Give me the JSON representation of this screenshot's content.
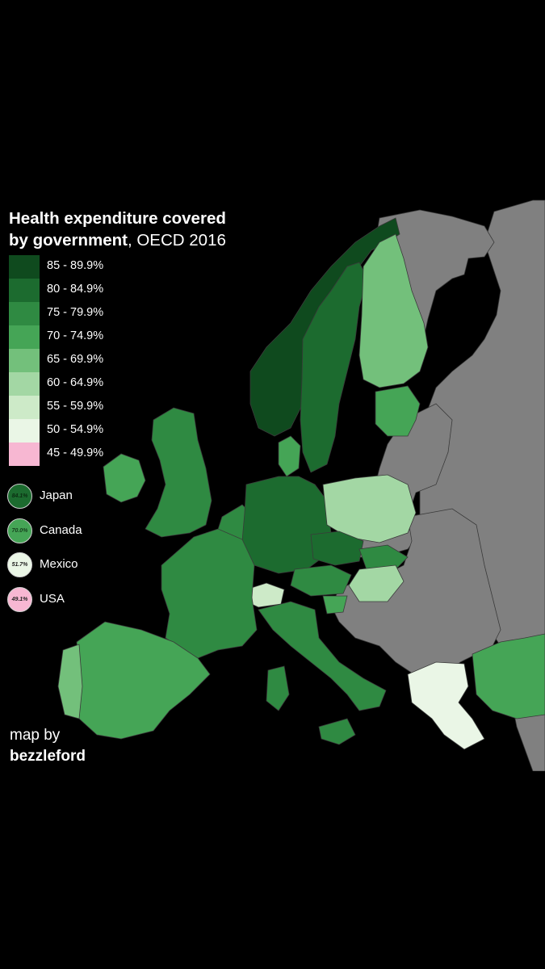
{
  "title": {
    "line1": "Health expenditure covered",
    "line2_bold": "by government",
    "line2_rest": ", OECD 2016"
  },
  "legend": [
    {
      "label": "85 - 89.9%",
      "color": "#0f4a1e"
    },
    {
      "label": "80 - 84.9%",
      "color": "#1c6b2f"
    },
    {
      "label": "75 - 79.9%",
      "color": "#2f8a42"
    },
    {
      "label": "70 - 74.9%",
      "color": "#45a556"
    },
    {
      "label": "65 - 69.9%",
      "color": "#73c07b"
    },
    {
      "label": "60 - 64.9%",
      "color": "#a3d7a4"
    },
    {
      "label": "55 - 59.9%",
      "color": "#cdeac8"
    },
    {
      "label": "50 - 54.9%",
      "color": "#eaf6e6"
    },
    {
      "label": "45 - 49.9%",
      "color": "#f7b7d2"
    }
  ],
  "references": [
    {
      "country": "Japan",
      "value": "84.1%",
      "color": "#1c6b2f",
      "text_color": "#0b2d12"
    },
    {
      "country": "Canada",
      "value": "70.0%",
      "color": "#45a556",
      "text_color": "#153d1c"
    },
    {
      "country": "Mexico",
      "value": "51.7%",
      "color": "#eaf6e6",
      "text_color": "#222222"
    },
    {
      "country": "USA",
      "value": "49.1%",
      "color": "#f7b7d2",
      "text_color": "#222222"
    }
  ],
  "credit": {
    "line1": "map by",
    "name": "bezzleford"
  },
  "colors": {
    "background": "#000000",
    "non_oecd": "#808080",
    "border": "#5a5a5a"
  }
}
